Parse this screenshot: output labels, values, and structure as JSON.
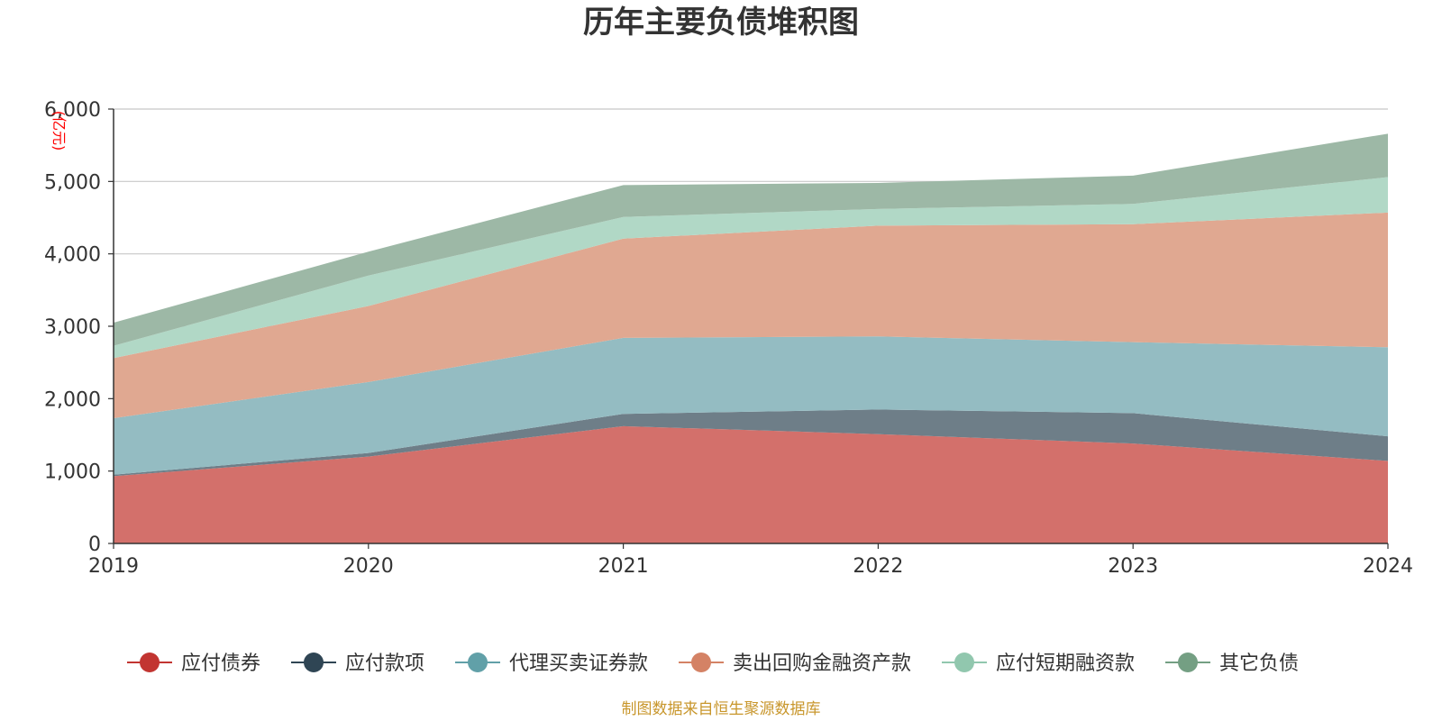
{
  "chart_data": {
    "type": "area",
    "title": "历年主要负债堆积图",
    "unit_label": "(亿元)",
    "x": [
      "2019",
      "2020",
      "2021",
      "2022",
      "2023",
      "2024"
    ],
    "ylim": [
      0,
      6000
    ],
    "yticks": [
      "0",
      "1,000",
      "2,000",
      "3,000",
      "4,000",
      "5,000",
      "6,000"
    ],
    "ytick_values": [
      0,
      1000,
      2000,
      3000,
      4000,
      5000,
      6000
    ],
    "grid": true,
    "stacked": true,
    "legend_position": "bottom",
    "series": [
      {
        "name": "应付债券",
        "values": [
          930,
          1200,
          1620,
          1510,
          1380,
          1140
        ],
        "color": "#c23531",
        "fill": "#d3706b"
      },
      {
        "name": "应付款项",
        "values": [
          20,
          50,
          170,
          340,
          420,
          340
        ],
        "color": "#2f4554",
        "fill": "#6e7e88"
      },
      {
        "name": "代理买卖证券款",
        "values": [
          780,
          980,
          1050,
          1010,
          980,
          1230
        ],
        "color": "#61a0a8",
        "fill": "#94bcc2"
      },
      {
        "name": "卖出回购金融资产款",
        "values": [
          830,
          1050,
          1370,
          1530,
          1630,
          1860
        ],
        "color": "#d48265",
        "fill": "#e0a891"
      },
      {
        "name": "应付短期融资款",
        "values": [
          170,
          420,
          300,
          230,
          280,
          490
        ],
        "color": "#91c7ae",
        "fill": "#b1d8c6"
      },
      {
        "name": "其它负债",
        "values": [
          320,
          330,
          440,
          360,
          390,
          600
        ],
        "color": "#749f83",
        "fill": "#9db8a6"
      }
    ],
    "source": "制图数据来自恒生聚源数据库"
  }
}
